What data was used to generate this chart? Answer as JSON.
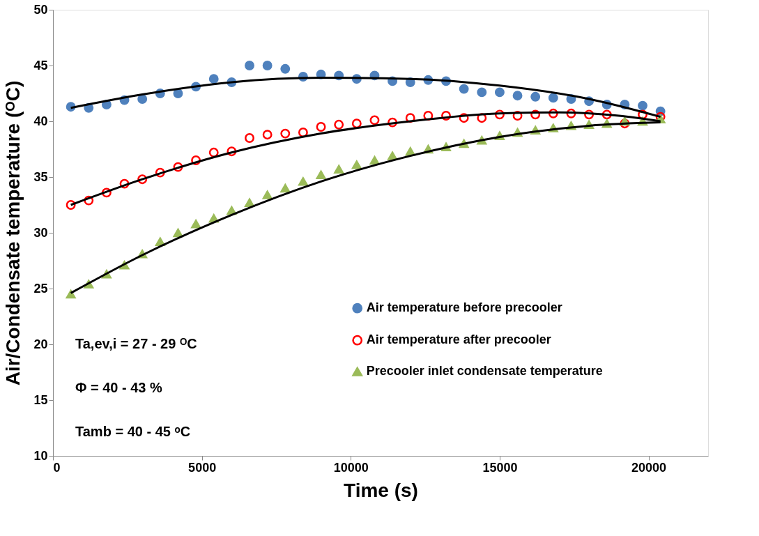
{
  "chart_data": {
    "type": "scatter",
    "xlabel": "Time (s)",
    "ylabel": "Air/Condensate temperature (ᴼC)",
    "x": [
      600,
      1200,
      1800,
      2400,
      3000,
      3600,
      4200,
      4800,
      5400,
      6000,
      6600,
      7200,
      7800,
      8400,
      9000,
      9600,
      10200,
      10800,
      11400,
      12000,
      12600,
      13200,
      13800,
      14400,
      15000,
      15600,
      16200,
      16800,
      17400,
      18000,
      18600,
      19200,
      19800,
      20400
    ],
    "xlim": [
      0,
      22000
    ],
    "xticks": [
      0,
      5000,
      10000,
      15000,
      20000
    ],
    "ylim": [
      10,
      50
    ],
    "yticks": [
      10,
      15,
      20,
      25,
      30,
      35,
      40,
      45,
      50
    ],
    "grid": false,
    "legend": "bottom right",
    "series": [
      {
        "name": "Air temperature before precooler",
        "color": "#4f81bd",
        "marker": "circle",
        "values": [
          41.3,
          41.2,
          41.5,
          41.9,
          42.0,
          42.5,
          42.5,
          43.1,
          43.8,
          43.5,
          45.0,
          45.0,
          44.7,
          44.0,
          44.2,
          44.1,
          43.8,
          44.1,
          43.6,
          43.5,
          43.7,
          43.6,
          42.9,
          42.6,
          42.6,
          42.3,
          42.2,
          42.1,
          42.0,
          41.8,
          41.5,
          41.5,
          41.4,
          40.9
        ]
      },
      {
        "name": "Air temperature after precooler",
        "color": "#ff0000",
        "marker": "circle-open",
        "values": [
          32.5,
          32.9,
          33.6,
          34.4,
          34.8,
          35.4,
          35.9,
          36.5,
          37.2,
          37.3,
          38.5,
          38.8,
          38.9,
          39.0,
          39.5,
          39.7,
          39.8,
          40.1,
          39.9,
          40.3,
          40.5,
          40.5,
          40.3,
          40.3,
          40.6,
          40.5,
          40.6,
          40.7,
          40.7,
          40.6,
          40.6,
          39.8,
          40.6,
          40.4
        ]
      },
      {
        "name": "Precooler inlet condensate temperature",
        "color": "#9bbb59",
        "marker": "triangle",
        "values": [
          24.5,
          25.4,
          26.3,
          27.1,
          28.1,
          29.2,
          30.0,
          30.8,
          31.3,
          32.0,
          32.7,
          33.4,
          34.0,
          34.6,
          35.2,
          35.7,
          36.1,
          36.5,
          36.9,
          37.3,
          37.5,
          37.7,
          38.0,
          38.3,
          38.7,
          39.0,
          39.2,
          39.4,
          39.6,
          39.7,
          39.8,
          40.0,
          40.0,
          40.2
        ]
      },
      {
        "type": "line",
        "color": "#000000",
        "x": [
          600,
          3000,
          6000,
          9000,
          12000,
          15000,
          18000,
          20400
        ],
        "values": [
          41.2,
          42.4,
          43.5,
          43.9,
          43.8,
          43.2,
          42.0,
          40.4
        ]
      },
      {
        "type": "line",
        "color": "#000000",
        "x": [
          600,
          3000,
          6000,
          9000,
          12000,
          15000,
          17000,
          19000,
          20400
        ],
        "values": [
          32.5,
          34.8,
          37.2,
          38.9,
          40.0,
          40.7,
          40.8,
          40.5,
          40.0
        ]
      },
      {
        "type": "line",
        "color": "#000000",
        "x": [
          600,
          3000,
          6000,
          9000,
          12000,
          15000,
          18000,
          20400
        ],
        "values": [
          24.6,
          28.0,
          31.6,
          34.6,
          36.9,
          38.6,
          39.6,
          39.9
        ]
      }
    ],
    "annotations": [
      "Ta,ev,i = 27 - 29 ᴼC",
      "Φ = 40 - 43 %",
      "Tamb = 40 - 45 ᵒC"
    ]
  }
}
